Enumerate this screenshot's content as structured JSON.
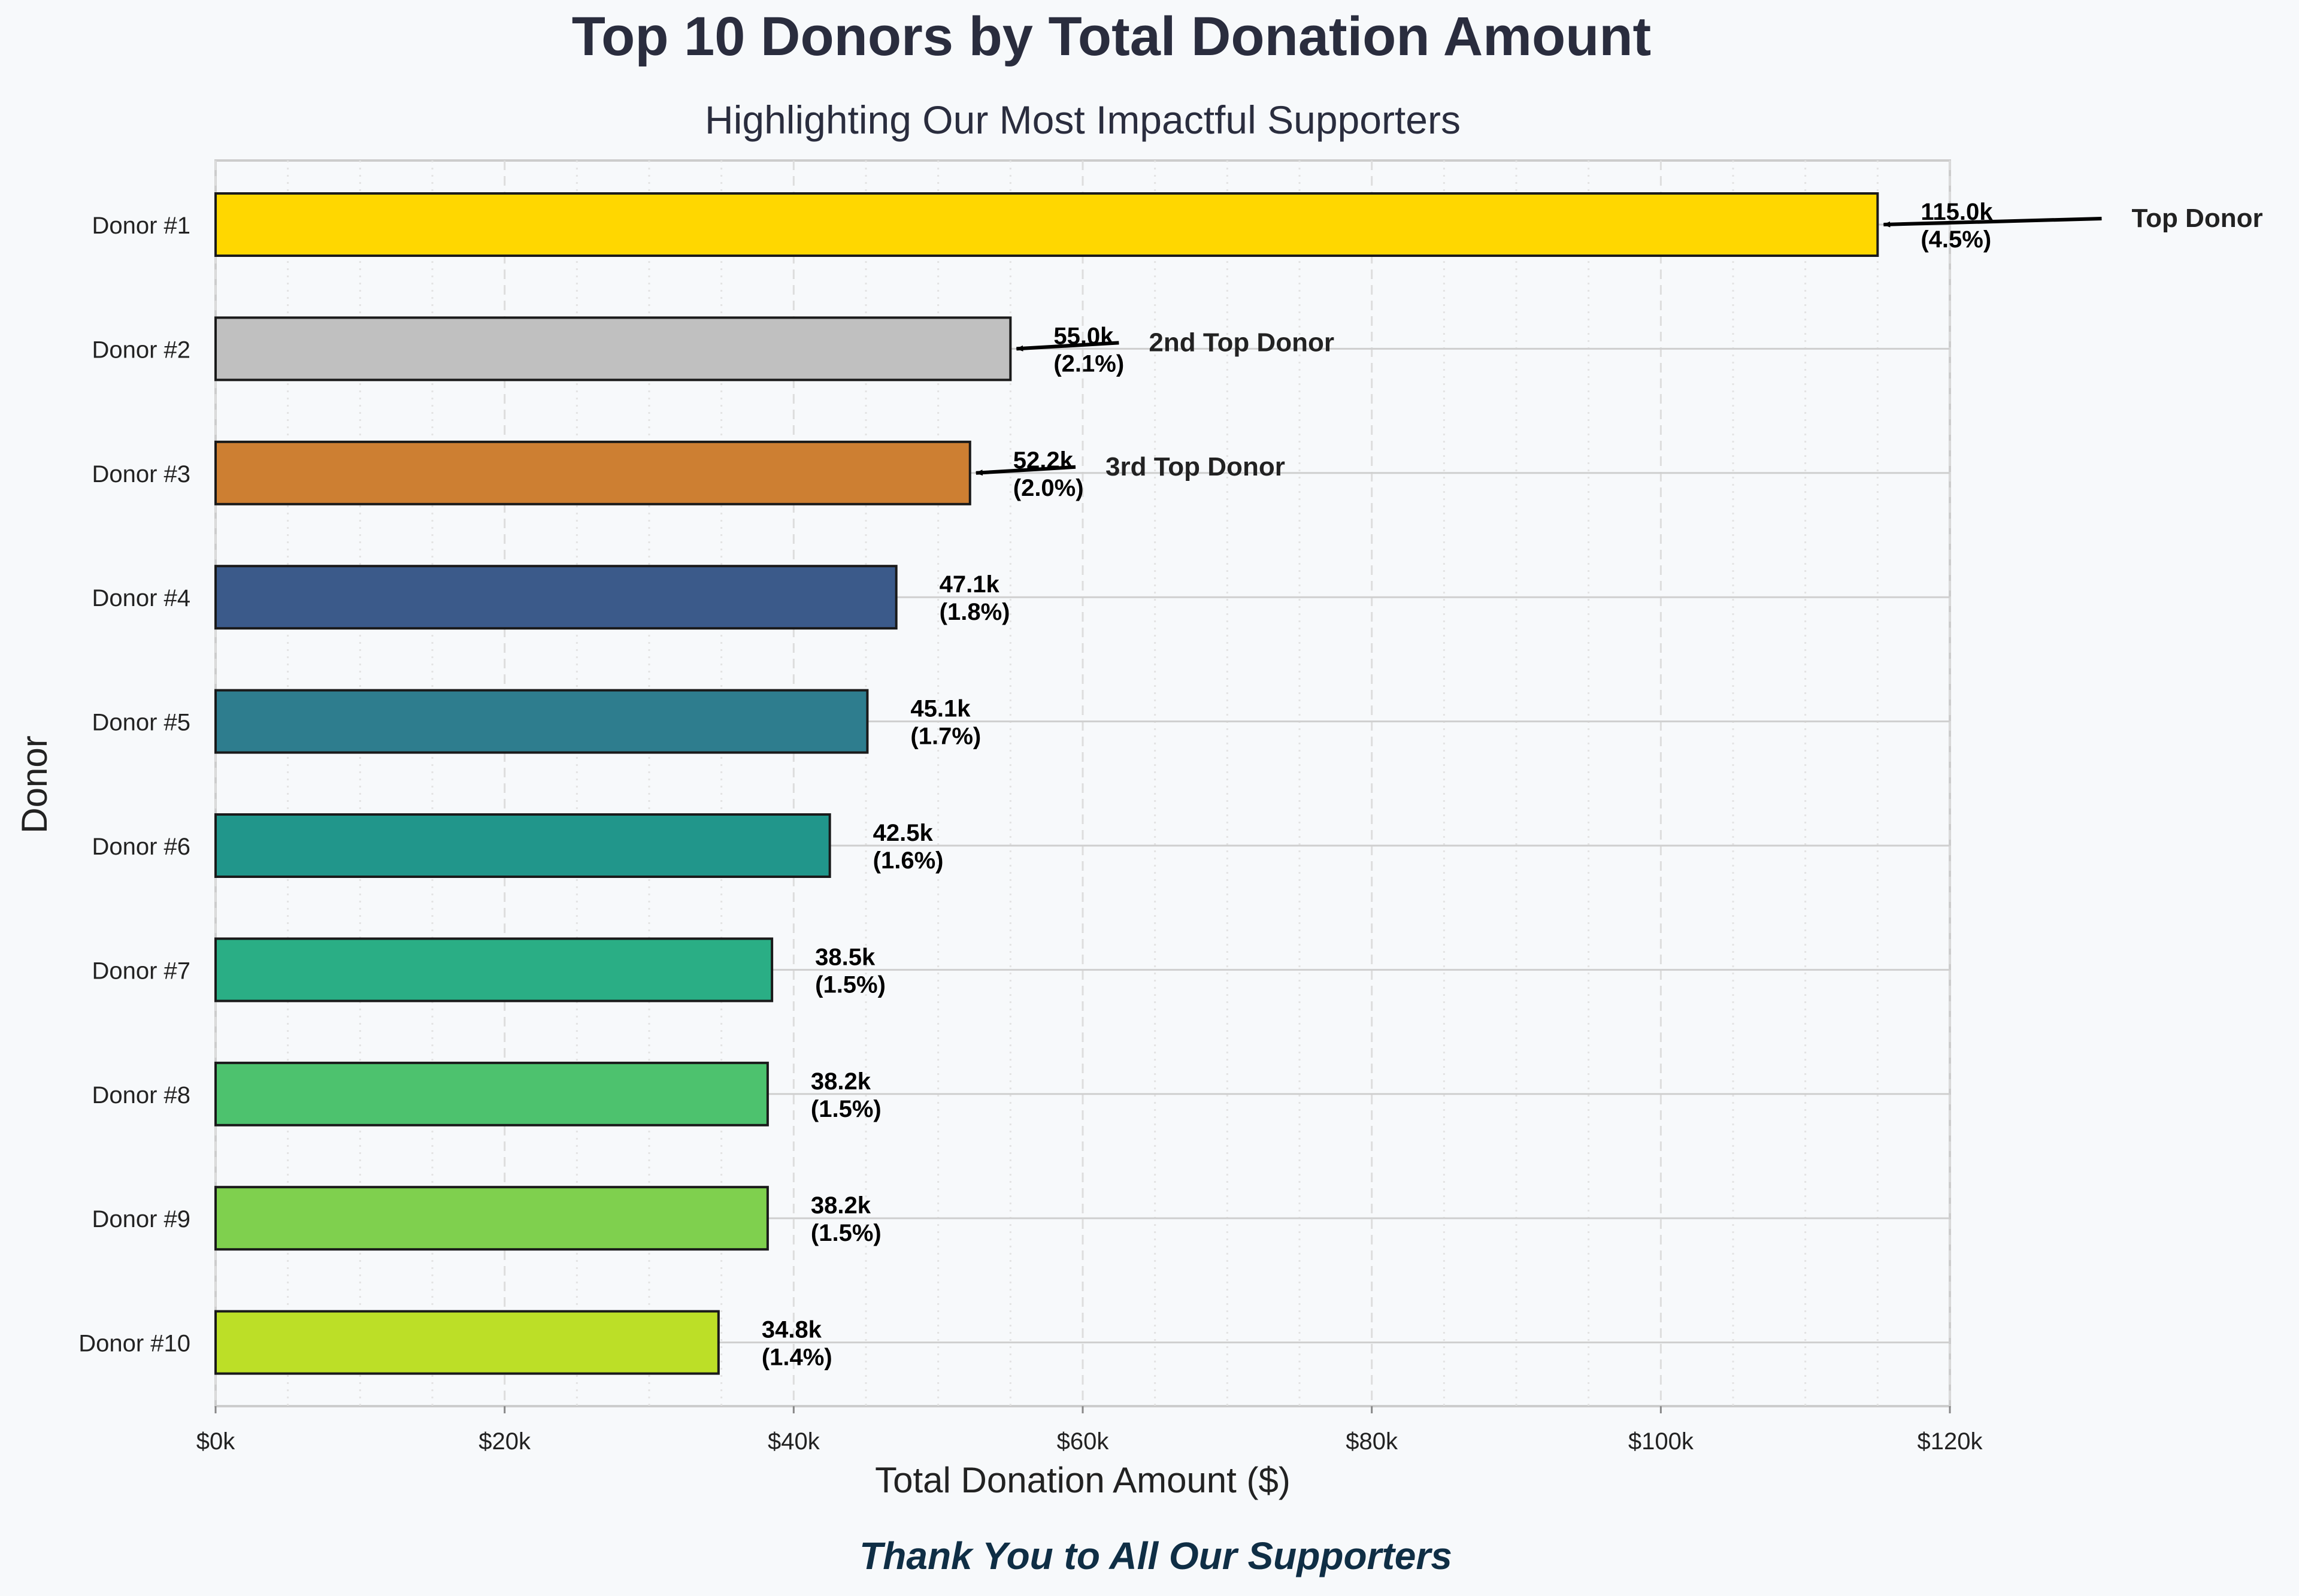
{
  "chart_data": {
    "type": "bar",
    "orientation": "horizontal",
    "title": "Top 10 Donors by Total Donation Amount",
    "subtitle": "Highlighting Our Most Impactful Supporters",
    "xlabel": "Total Donation Amount ($)",
    "ylabel": "Donor",
    "xlim": [
      0,
      120000
    ],
    "x_ticks": [
      {
        "value": 0,
        "label": "$0k"
      },
      {
        "value": 20000,
        "label": "$20k"
      },
      {
        "value": 40000,
        "label": "$40k"
      },
      {
        "value": 60000,
        "label": "$60k"
      },
      {
        "value": 80000,
        "label": "$80k"
      },
      {
        "value": 100000,
        "label": "$100k"
      },
      {
        "value": 120000,
        "label": "$120k"
      }
    ],
    "grid": true,
    "categories": [
      "Donor #1",
      "Donor #2",
      "Donor #3",
      "Donor #4",
      "Donor #5",
      "Donor #6",
      "Donor #7",
      "Donor #8",
      "Donor #9",
      "Donor #10"
    ],
    "values": [
      115000,
      55000,
      52200,
      47100,
      45100,
      42500,
      38500,
      38200,
      38200,
      34800
    ],
    "value_labels": [
      "115.0k",
      "55.0k",
      "52.2k",
      "47.1k",
      "45.1k",
      "42.5k",
      "38.5k",
      "38.2k",
      "38.2k",
      "34.8k"
    ],
    "percent_labels": [
      "(4.5%)",
      "(2.1%)",
      "(2.0%)",
      "(1.8%)",
      "(1.7%)",
      "(1.6%)",
      "(1.5%)",
      "(1.5%)",
      "(1.5%)",
      "(1.4%)"
    ],
    "colors": [
      "#ffd700",
      "#c0c0c0",
      "#cd7f32",
      "#3b5a8a",
      "#2e7d8e",
      "#21968b",
      "#2aae85",
      "#4dc26e",
      "#7fd04e",
      "#bcdf27"
    ],
    "annotations": [
      {
        "text": "Top Donor",
        "target_index": 0,
        "target_value": 115000,
        "text_value": 131000
      },
      {
        "text": "2nd Top Donor",
        "target_index": 1,
        "target_value": 55000,
        "text_value": 63000
      },
      {
        "text": "3rd Top Donor",
        "target_index": 2,
        "target_value": 52200,
        "text_value": 60000
      }
    ],
    "footer": "Thank You to All Our Supporters"
  }
}
